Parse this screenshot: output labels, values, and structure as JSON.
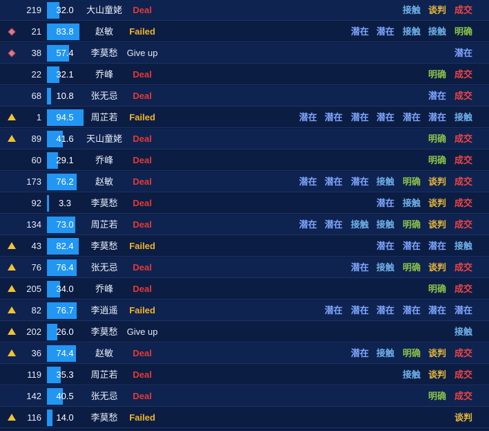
{
  "rows": [
    {
      "icon": "none",
      "id": "219",
      "score": 32.0,
      "score_label": "32.0",
      "name": "大山童姥",
      "status": "Deal",
      "tags": [
        "接触",
        "谈判",
        "成交"
      ]
    },
    {
      "icon": "diamond",
      "id": "21",
      "score": 83.8,
      "score_label": "83.8",
      "name": "赵敏",
      "status": "Failed",
      "tags": [
        "潜在",
        "潜在",
        "接触",
        "接触",
        "明确"
      ]
    },
    {
      "icon": "diamond",
      "id": "38",
      "score": 57.4,
      "score_label": "57.4",
      "name": "李莫愁",
      "status": "Give up",
      "tags": [
        "潜在"
      ]
    },
    {
      "icon": "none",
      "id": "22",
      "score": 32.1,
      "score_label": "32.1",
      "name": "乔峰",
      "status": "Deal",
      "tags": [
        "明确",
        "成交"
      ]
    },
    {
      "icon": "none",
      "id": "68",
      "score": 10.8,
      "score_label": "10.8",
      "name": "张无忌",
      "status": "Deal",
      "tags": [
        "潜在",
        "成交"
      ]
    },
    {
      "icon": "warning",
      "id": "1",
      "score": 94.5,
      "score_label": "94.5",
      "name": "周芷若",
      "status": "Failed",
      "tags": [
        "潜在",
        "潜在",
        "潜在",
        "潜在",
        "潜在",
        "潜在",
        "接触"
      ]
    },
    {
      "icon": "warning",
      "id": "89",
      "score": 41.6,
      "score_label": "41.6",
      "name": "天山童姥",
      "status": "Deal",
      "tags": [
        "明确",
        "成交"
      ]
    },
    {
      "icon": "none",
      "id": "60",
      "score": 29.1,
      "score_label": "29.1",
      "name": "乔峰",
      "status": "Deal",
      "tags": [
        "明确",
        "成交"
      ]
    },
    {
      "icon": "none",
      "id": "173",
      "score": 76.2,
      "score_label": "76.2",
      "name": "赵敏",
      "status": "Deal",
      "tags": [
        "潜在",
        "潜在",
        "潜在",
        "接触",
        "明确",
        "谈判",
        "成交"
      ]
    },
    {
      "icon": "none",
      "id": "92",
      "score": 3.3,
      "score_label": "3.3",
      "name": "李莫愁",
      "status": "Deal",
      "tags": [
        "潜在",
        "接触",
        "谈判",
        "成交"
      ]
    },
    {
      "icon": "none",
      "id": "134",
      "score": 73.0,
      "score_label": "73.0",
      "name": "周芷若",
      "status": "Deal",
      "tags": [
        "潜在",
        "潜在",
        "接触",
        "接触",
        "明确",
        "谈判",
        "成交"
      ]
    },
    {
      "icon": "warning",
      "id": "43",
      "score": 82.4,
      "score_label": "82.4",
      "name": "李莫愁",
      "status": "Failed",
      "tags": [
        "潜在",
        "潜在",
        "潜在",
        "接触"
      ]
    },
    {
      "icon": "warning",
      "id": "76",
      "score": 76.4,
      "score_label": "76.4",
      "name": "张无忌",
      "status": "Deal",
      "tags": [
        "潜在",
        "接触",
        "明确",
        "谈判",
        "成交"
      ]
    },
    {
      "icon": "warning",
      "id": "205",
      "score": 34.0,
      "score_label": "34.0",
      "name": "乔峰",
      "status": "Deal",
      "tags": [
        "明确",
        "成交"
      ]
    },
    {
      "icon": "warning",
      "id": "82",
      "score": 76.7,
      "score_label": "76.7",
      "name": "李逍遥",
      "status": "Failed",
      "tags": [
        "潜在",
        "潜在",
        "潜在",
        "潜在",
        "潜在",
        "潜在"
      ]
    },
    {
      "icon": "warning",
      "id": "202",
      "score": 26.0,
      "score_label": "26.0",
      "name": "李莫愁",
      "status": "Give up",
      "tags": [
        "接触"
      ]
    },
    {
      "icon": "warning",
      "id": "36",
      "score": 74.4,
      "score_label": "74.4",
      "name": "赵敏",
      "status": "Deal",
      "tags": [
        "潜在",
        "接触",
        "明确",
        "谈判",
        "成交"
      ]
    },
    {
      "icon": "none",
      "id": "119",
      "score": 35.3,
      "score_label": "35.3",
      "name": "周芷若",
      "status": "Deal",
      "tags": [
        "接触",
        "谈判",
        "成交"
      ]
    },
    {
      "icon": "none",
      "id": "142",
      "score": 40.5,
      "score_label": "40.5",
      "name": "张无忌",
      "status": "Deal",
      "tags": [
        "明确",
        "成交"
      ]
    },
    {
      "icon": "warning",
      "id": "116",
      "score": 14.0,
      "score_label": "14.0",
      "name": "李莫愁",
      "status": "Failed",
      "tags": [
        "谈判"
      ]
    }
  ]
}
